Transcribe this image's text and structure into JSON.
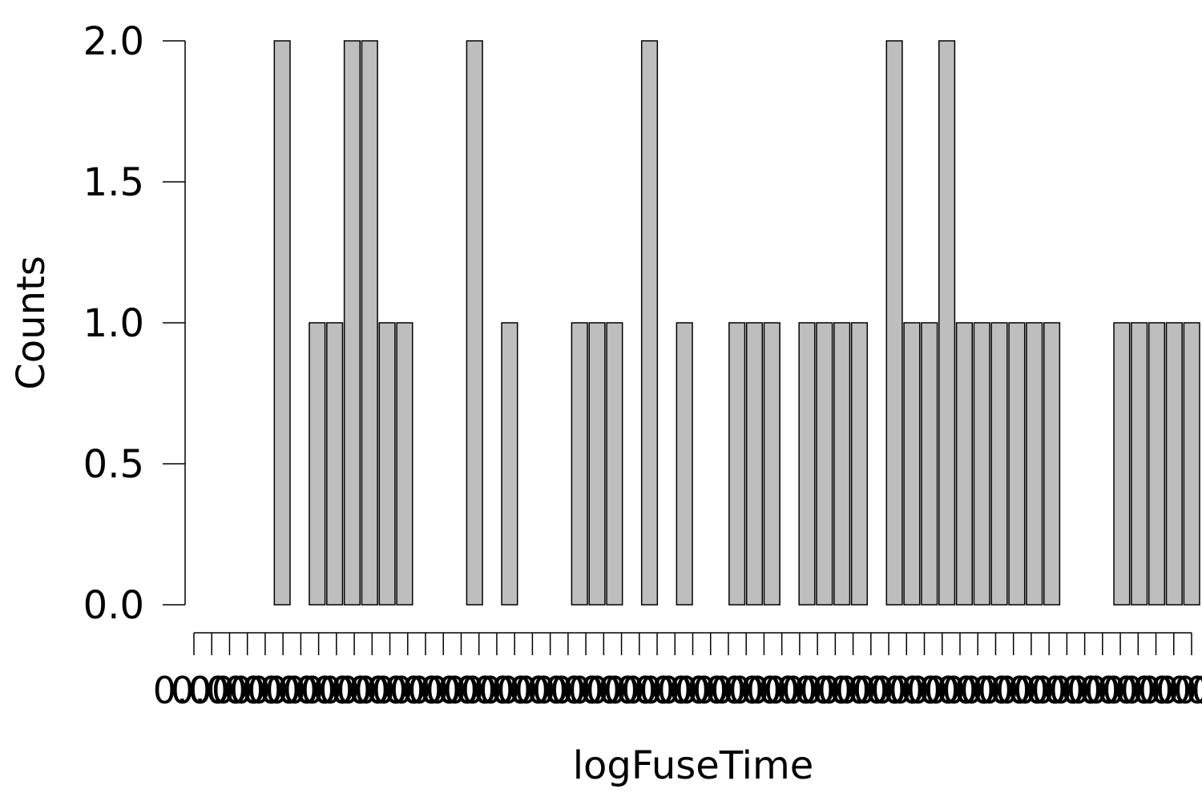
{
  "chart_data": {
    "type": "bar",
    "xlabel": "logFuseTime",
    "ylabel": "Counts",
    "ylim": [
      0,
      2
    ],
    "yticks": [
      "0.0",
      "0.5",
      "1.0",
      "1.5",
      "2.0"
    ],
    "ytick_values": [
      0,
      0.5,
      1,
      1.5,
      2
    ],
    "values": [
      0,
      0,
      0,
      0,
      0,
      2,
      0,
      1,
      1,
      2,
      2,
      1,
      1,
      0,
      0,
      0,
      2,
      0,
      1,
      0,
      0,
      0,
      1,
      1,
      1,
      0,
      2,
      0,
      1,
      0,
      0,
      1,
      1,
      1,
      0,
      1,
      1,
      1,
      1,
      0,
      2,
      1,
      1,
      2,
      1,
      1,
      1,
      1,
      1,
      1,
      0,
      0,
      0,
      1,
      1,
      1,
      1,
      1
    ],
    "x_tick_label_count": 57,
    "grid": false,
    "legend": "none"
  }
}
